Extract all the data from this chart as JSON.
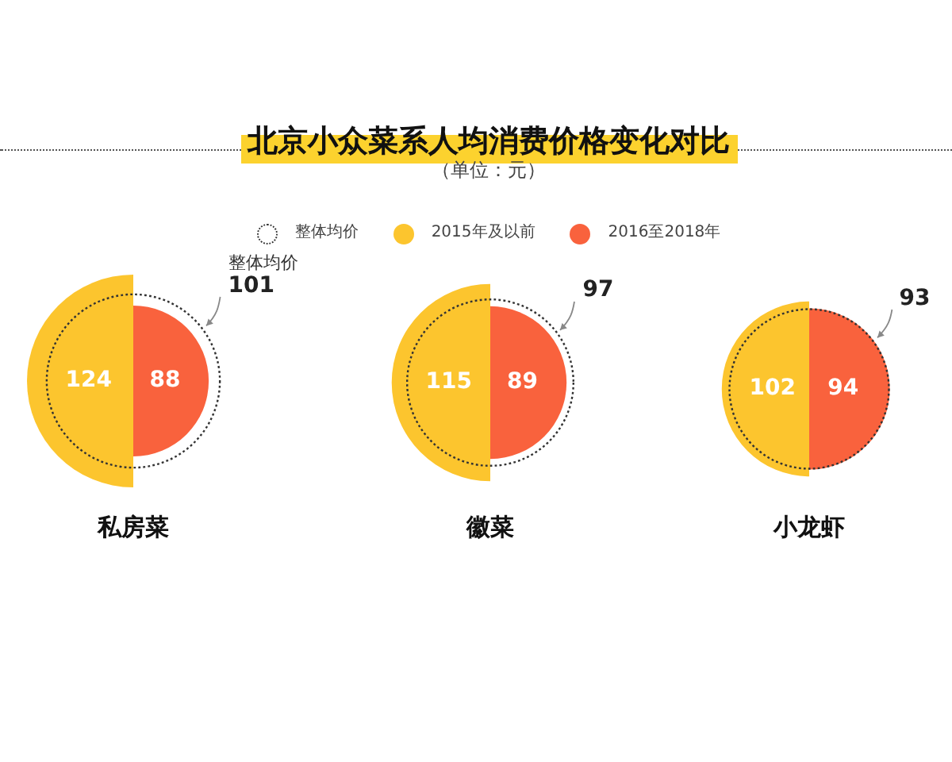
{
  "chart_data": {
    "type": "other",
    "title": "北京小众菜系人均消费价格变化对比",
    "subtitle": "（单位：元）",
    "categories": [
      "私房菜",
      "徽菜",
      "小龙虾"
    ],
    "series": [
      {
        "name": "整体均价",
        "color": "#333333",
        "line_style": "dotted",
        "values": [
          101,
          97,
          93
        ]
      },
      {
        "name": "2015年及以前",
        "color": "#fcc52e",
        "values": [
          124,
          115,
          102
        ]
      },
      {
        "name": "2016至2018年",
        "color": "#f9623d",
        "values": [
          88,
          89,
          94
        ]
      }
    ],
    "legend": "top",
    "data_labels": true
  }
}
